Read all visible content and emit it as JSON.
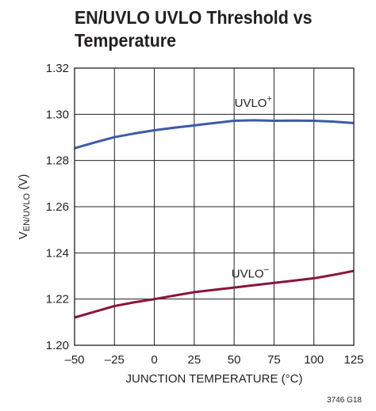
{
  "chart_data": {
    "type": "line",
    "title_lines": [
      "EN/UVLO UVLO Threshold vs",
      "Temperature"
    ],
    "ylabel": {
      "main": "V",
      "sub": "EN/UVLO",
      "suffix": " (V)"
    },
    "xlabel": "JUNCTION TEMPERATURE (°C)",
    "xlim": [
      -50,
      125
    ],
    "ylim": [
      1.2,
      1.32
    ],
    "x_ticks": [
      -50,
      -25,
      0,
      25,
      50,
      75,
      100,
      125
    ],
    "x_tick_labels": [
      "–50",
      "–25",
      "0",
      "25",
      "50",
      "75",
      "100",
      "125"
    ],
    "y_ticks": [
      1.2,
      1.22,
      1.24,
      1.26,
      1.28,
      1.3,
      1.32
    ],
    "y_tick_labels": [
      "1.20",
      "1.22",
      "1.24",
      "1.26",
      "1.28",
      "1.30",
      "1.32"
    ],
    "grid": true,
    "series": [
      {
        "name": "UVLO+",
        "label_main": "UVLO",
        "label_sup": "+",
        "color": "#3b5ba9",
        "x": [
          -50,
          -37.5,
          -25,
          -12.5,
          0,
          12.5,
          25,
          37.5,
          50,
          62.5,
          75,
          87.5,
          100,
          112.5,
          125
        ],
        "y": [
          1.2853,
          1.2878,
          1.2901,
          1.2917,
          1.2931,
          1.2942,
          1.2952,
          1.2962,
          1.2972,
          1.2974,
          1.2972,
          1.2973,
          1.2972,
          1.2968,
          1.2962
        ]
      },
      {
        "name": "UVLO–",
        "label_main": "UVLO",
        "label_sup": "–",
        "color": "#8a1538",
        "x": [
          -50,
          -37.5,
          -25,
          -12.5,
          0,
          12.5,
          25,
          37.5,
          50,
          62.5,
          75,
          87.5,
          100,
          112.5,
          125
        ],
        "y": [
          1.212,
          1.2145,
          1.217,
          1.2186,
          1.22,
          1.2215,
          1.223,
          1.224,
          1.225,
          1.226,
          1.227,
          1.228,
          1.229,
          1.2305,
          1.2322
        ]
      }
    ]
  },
  "footnote": "3746 G18"
}
